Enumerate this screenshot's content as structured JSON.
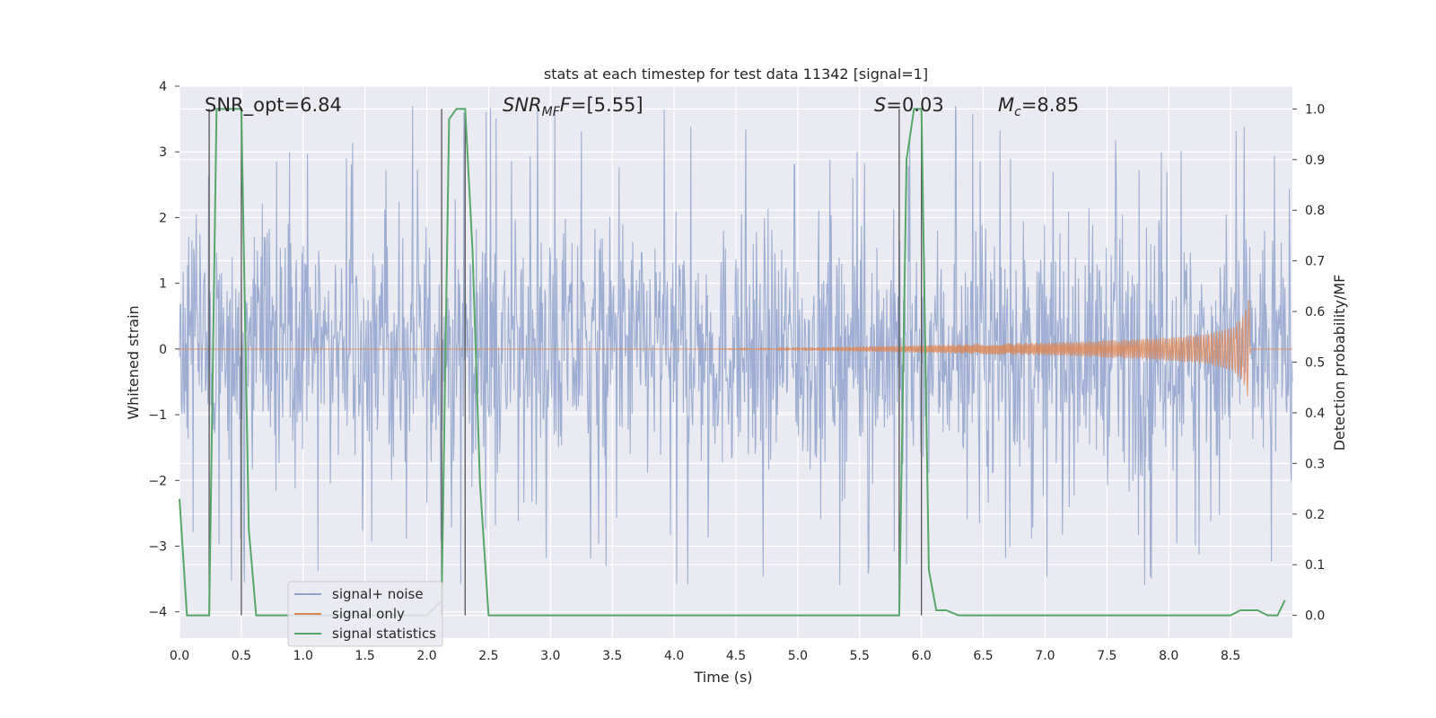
{
  "chart_data": {
    "type": "line",
    "title": "stats at each timestep for test data 11342 [signal=1]",
    "xlabel": "Time (s)",
    "ylabel_left": "Whitened strain",
    "ylabel_right": "Detection probability/MF",
    "xlim": [
      0,
      9.0
    ],
    "ylim_left": [
      -4.4,
      4.0
    ],
    "ylim_right": [
      -0.045,
      1.045
    ],
    "x_ticks": [
      "0.0",
      "0.5",
      "1.0",
      "1.5",
      "2.0",
      "2.5",
      "3.0",
      "3.5",
      "4.0",
      "4.5",
      "5.0",
      "5.5",
      "6.0",
      "6.5",
      "7.0",
      "7.5",
      "8.0",
      "8.5"
    ],
    "y_ticks_left": [
      "4",
      "3",
      "2",
      "1",
      "0",
      "−1",
      "−2",
      "−3",
      "−4"
    ],
    "y_ticks_right": [
      "1.0",
      "0.9",
      "0.8",
      "0.7",
      "0.6",
      "0.5",
      "0.4",
      "0.3",
      "0.2",
      "0.1",
      "0.0"
    ],
    "grid": true,
    "legend_position": "lower-left",
    "annotations": {
      "snr_opt": "SNR_opt=6.84",
      "snr_mf_prefix": "SNR",
      "snr_mf_sub": "MF",
      "snr_mf_suffix": "=[5.55]",
      "s_label": "S",
      "s_value": "=0.03",
      "mc_label": "M",
      "mc_sub": "c",
      "mc_value": "=8.85"
    },
    "vertical_lines_x": [
      0.24,
      0.5,
      2.12,
      2.31,
      5.82,
      6.0
    ],
    "series": [
      {
        "name": "signal+ noise",
        "color": "#8fa3cc",
        "axis": "left",
        "description_range": [
          -3.6,
          3.7
        ]
      },
      {
        "name": "signal only",
        "color": "#dd8452",
        "axis": "left",
        "envelope_x": [
          4.3,
          5.0,
          5.5,
          6.0,
          6.5,
          7.0,
          7.5,
          8.0,
          8.3,
          8.5,
          8.6,
          8.65,
          8.66
        ],
        "envelope_amp": [
          0.0,
          0.02,
          0.04,
          0.06,
          0.08,
          0.1,
          0.13,
          0.18,
          0.23,
          0.32,
          0.5,
          0.8,
          0.0
        ]
      },
      {
        "name": "signal statistics",
        "color": "#55a868",
        "axis": "right",
        "x": [
          0.0,
          0.06,
          0.12,
          0.18,
          0.24,
          0.3,
          0.36,
          0.42,
          0.5,
          0.56,
          0.62,
          0.7,
          1.0,
          1.5,
          2.0,
          2.12,
          2.18,
          2.24,
          2.31,
          2.37,
          2.43,
          2.5,
          3.0,
          4.0,
          5.0,
          5.5,
          5.82,
          5.88,
          5.94,
          5.97,
          6.0,
          6.06,
          6.12,
          6.2,
          6.3,
          7.0,
          8.0,
          8.5,
          8.58,
          8.66,
          8.72,
          8.8,
          8.88,
          8.94
        ],
        "y": [
          0.23,
          0.0,
          0.0,
          0.0,
          0.0,
          1.0,
          1.0,
          1.0,
          1.0,
          0.17,
          0.0,
          0.0,
          0.0,
          0.0,
          0.0,
          0.03,
          0.98,
          1.0,
          1.0,
          0.72,
          0.26,
          0.0,
          0.0,
          0.0,
          0.0,
          0.0,
          0.0,
          0.9,
          1.0,
          1.0,
          1.0,
          0.09,
          0.01,
          0.01,
          0.0,
          0.0,
          0.0,
          0.0,
          0.01,
          0.01,
          0.01,
          0.0,
          0.0,
          0.03
        ]
      }
    ]
  }
}
